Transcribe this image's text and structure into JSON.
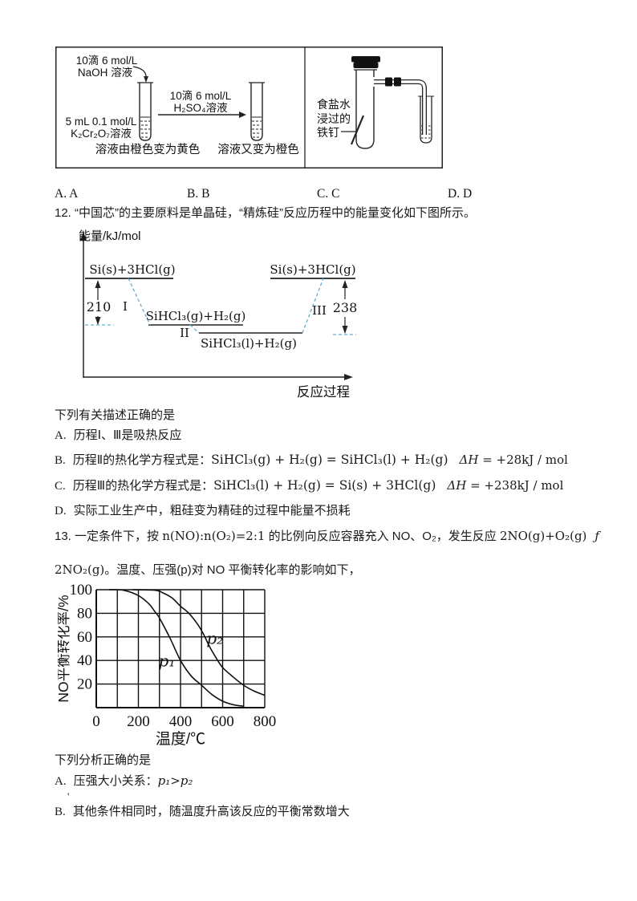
{
  "experiment": {
    "left": {
      "drop_naoh_1": "10滴 6 mol/L",
      "drop_naoh_2": "NaOH 溶液",
      "k2cr2o7_1": "5 mL 0.1 mol/L",
      "k2cr2o7_2": "K₂Cr₂O₇溶液",
      "arrow_1": "10滴 6 mol/L",
      "arrow_2": "H₂SO₄溶液",
      "caption1": "溶液由橙色变为黄色",
      "caption2": "溶液又变为橙色"
    },
    "right": {
      "label1": "食盐水",
      "label2": "浸过的",
      "label3": "铁钉"
    }
  },
  "answers": {
    "a": "A. A",
    "b": "B. B",
    "c": "C. C",
    "d": "D. D"
  },
  "q12": {
    "stem": "12. “中国芯”的主要原料是单晶硅，“精炼硅”反应历程中的能量变化如下图所示。",
    "diagram": {
      "y_label": "能量/kJ/mol",
      "x_label": "反应过程",
      "lv_left": "Si(s)+3HCl(g)",
      "lv_mid": "SiHCl₃(g)+H₂(g)",
      "lv_low": "SiHCl₃(l)+H₂(g)",
      "lv_right": "Si(s)+3HCl(g)",
      "e_left": "210",
      "e_right": "238",
      "s1": "I",
      "s2": "II",
      "s3": "III",
      "dash_color": "#63aecf"
    },
    "prompt": "下列有关描述正确的是",
    "opt_a_label": "A.",
    "opt_a": "历程Ⅰ、Ⅲ是吸热反应",
    "opt_b_label": "B.",
    "opt_b_prefix": "历程Ⅱ的热化学方程式是：",
    "opt_b_eq": "SiHCl₃(g) + H₂(g) = SiHCl₃(l) + H₂(g)",
    "opt_b_dh_sym": "ΔH",
    "opt_b_dh_val": " = +28kJ / mol",
    "opt_c_label": "C.",
    "opt_c_prefix": "历程Ⅲ的热化学方程式是：",
    "opt_c_eq": "SiHCl₃(l) + H₂(g) = Si(s) + 3HCl(g)",
    "opt_c_dh_sym": "ΔH",
    "opt_c_dh_val": " = +238kJ / mol",
    "opt_d_label": "D.",
    "opt_d": "实际工业生产中，粗硅变为精硅的过程中能量不损耗"
  },
  "q13": {
    "stem1_a": "13. 一定条件下，按 ",
    "stem1_b": "n(NO):n(O₂)=2:1",
    "stem1_c": " 的比例向反应容器充入 NO、O₂，发生反应 ",
    "stem1_d": "2NO(g)+O₂(g)",
    "stem1_e": "ƒ",
    "stem2_a": "2NO₂(g)",
    "stem2_b": "。温度、压强(p)对 NO 平衡转化率的影响如下，",
    "prompt": "下列分析正确的是",
    "opt_a_label": "A.",
    "opt_a_text": "压强大小关系：",
    "opt_a_expr": "p₁>p₂",
    "stray": "'",
    "opt_b_label": "B.",
    "opt_b": "其他条件相同时，随温度升高该反应的平衡常数增大"
  },
  "chart_data": {
    "type": "line",
    "title": "",
    "xlabel": "温度/℃",
    "ylabel": "NO平衡转化率/%",
    "xlim": [
      0,
      800
    ],
    "ylim": [
      0,
      100
    ],
    "xticks": [
      0,
      200,
      400,
      600,
      800
    ],
    "yticks": [
      20,
      40,
      60,
      80,
      100
    ],
    "grid": true,
    "grid_step_x": 100,
    "grid_step_y": 20,
    "legend_position": "inline-curve-labels",
    "series": [
      {
        "name": "p₁",
        "label_pos": [
          335,
          35
        ],
        "points": [
          [
            60,
            100
          ],
          [
            130,
            99.5
          ],
          [
            200,
            95
          ],
          [
            250,
            88
          ],
          [
            280,
            81
          ],
          [
            300,
            76
          ],
          [
            350,
            59
          ],
          [
            400,
            40
          ],
          [
            450,
            27
          ],
          [
            500,
            19
          ],
          [
            550,
            11
          ],
          [
            600,
            5.5
          ],
          [
            650,
            2.5
          ],
          [
            700,
            1.2
          ]
        ]
      },
      {
        "name": "p₂",
        "label_pos": [
          563,
          54
        ],
        "points": [
          [
            170,
            100
          ],
          [
            280,
            99.5
          ],
          [
            320,
            97
          ],
          [
            360,
            93
          ],
          [
            400,
            86
          ],
          [
            440,
            80
          ],
          [
            480,
            71
          ],
          [
            510,
            62
          ],
          [
            540,
            51
          ],
          [
            570,
            42
          ],
          [
            600,
            34
          ],
          [
            650,
            26
          ],
          [
            700,
            19
          ],
          [
            750,
            14
          ],
          [
            800,
            10.5
          ]
        ]
      }
    ]
  }
}
